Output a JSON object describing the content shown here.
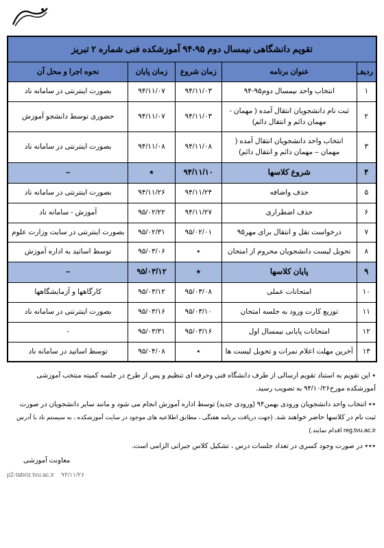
{
  "title": "تقویم دانشگاهی نیمسال دوم ۹۵-۹۴ آموزشکده فنی شماره ۲ تبریز",
  "headers": {
    "num": "ردیف",
    "program": "عنوان برنامه",
    "start": "زمان شروع",
    "end": "زمان پایان",
    "how": "نحوه اجرا و محل آن"
  },
  "rows": [
    {
      "n": "۱",
      "prog": "انتخاب واحد نیمسال دوم۹۵-۹۴",
      "s": "۹۴/۱۱/۰۳",
      "e": "۹۴/۱۱/۰۷",
      "h": "بصورت اینترنتی در سامانه ناد",
      "hi": false
    },
    {
      "n": "۲",
      "prog": "ثبت نام دانشجویان انتقال آمده ( مهمان - مهمان دائم و انتقال دائم)",
      "s": "۹۴/۱۱/۰۳",
      "e": "۹۴/۱۱/۰۷",
      "h": "حضوری توسط دانشجو آموزش",
      "hi": false
    },
    {
      "n": "۳",
      "prog": "انتخاب واحد دانشجویان انتقال آمده ( مهمان – مهمان دائم و انتقال دائم)",
      "s": "۹۴/۱۱/۰۸",
      "e": "۹۴/۱۱/۰۸",
      "h": "بصورت اینترنتی در سامانه ناد",
      "hi": false
    },
    {
      "n": "۴",
      "prog": "شروع کلاسها",
      "s": "۹۴/۱۱/۱۰",
      "e": "٭",
      "h": "–",
      "hi": true
    },
    {
      "n": "۵",
      "prog": "حذف واضافه",
      "s": "۹۴/۱۱/۲۴",
      "e": "۹۴/۱۱/۲۶",
      "h": "بصورت اینترنتی در سامانه ناد",
      "hi": false
    },
    {
      "n": "۶",
      "prog": "حذف اضطراری",
      "s": "۹۴/۱۱/۲۷",
      "e": "۹۵/۰۲/۲۲",
      "h": "آموزش - سامانه ناد",
      "hi": false
    },
    {
      "n": "۷",
      "prog": "درخواست نقل و انتقال برای مهر۹۵",
      "s": "۹۵/۰۲/۰۱",
      "e": "۹۵/۰۲/۳۱",
      "h": "بصورت اینترنتی در سایت وزارت علوم",
      "hi": false
    },
    {
      "n": "۸",
      "prog": "تحویل لیست دانشجویان محروم از امتحان",
      "s": "٭",
      "e": "۹۵/۰۳/۰۶",
      "h": "توسط اساتید به اداره آموزش",
      "hi": false
    },
    {
      "n": "۹",
      "prog": "پایان کلاسها",
      "s": "٭",
      "e": "۹۵/۰۳/۱۲",
      "h": "–",
      "hi": true
    },
    {
      "n": "۱۰",
      "prog": "امتحانات عملی",
      "s": "۹۵/۰۳/۰۸",
      "e": "۹۵/۰۳/۱۲",
      "h": "کارگاهها و آزمایشگاهها",
      "hi": false
    },
    {
      "n": "۱۱",
      "prog": "توزیع کارت ورود به جلسه امتحان",
      "s": "۹۵/۰۳/۱۰",
      "e": "۹۵/۰۳/۱۶",
      "h": "بصورت اینترنتی در سامانه ناد",
      "hi": false
    },
    {
      "n": "۱۲",
      "prog": "امتحانات پایانی نیمسال اول",
      "s": "۹۵/۰۳/۱۶",
      "e": "۹۵/۰۳/۳۱",
      "h": "-",
      "hi": false
    },
    {
      "n": "۱۳",
      "prog": "آخرین مهلت اعلام نمرات و تحویل لیست ها",
      "s": "٭",
      "e": "۹۵/۰۴/۰۸",
      "h": "توسط اساتید در سامانه ناد",
      "hi": false
    }
  ],
  "notes": {
    "n1": "٭ این تقویم به استناد تقویم ارسالی از طرف دانشگاه فنی وحرفه ای تنظیم و پس از طرح در جلسه کمیته منتخب آموزشی آموزشکده مورخ۹۴/۱۰/۲۶ به تصویب رسید.",
    "n2a": "٭٭ انتخاب واحد دانشجویان ورودی بهمن۹۴ (ورودی جدید) توسط اداره آموزش انجام می شود و مانند سایر دانشجویان در صورت ثبت نام در کلاسها حاضر خواهند شد.",
    "n2b": "(جهت دریافت برنامه هفتگی ، مطابق اطلاعیه های موجود در سایت آموزشکده ، به سیستم ناد با آدرس reg.tvu.ac.ir اقدام نمایند.)",
    "n3": "٭٭٭ در صورت وجود کسری در تعداد جلسات درس ، تشکیل کلاس جبرانی الزامی است."
  },
  "sign": "معاونت آموزشی",
  "footer_url": "p2-tabriz.tvu.ac.ir",
  "footer_date": "۹۴/۱۱/۲۶"
}
